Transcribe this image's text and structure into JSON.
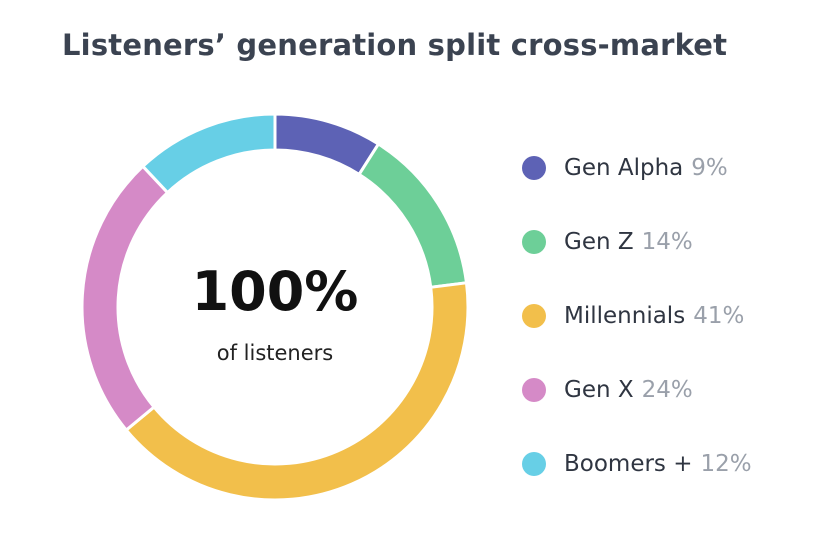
{
  "chart_data": {
    "type": "pie",
    "title": "Listeners’ generation split cross-market",
    "center_value": "100%",
    "center_caption": "of listeners",
    "categories": [
      "Gen Alpha",
      "Gen Z",
      "Millennials",
      "Gen X",
      "Boomers +"
    ],
    "values": [
      9,
      14,
      41,
      24,
      12
    ],
    "value_labels": [
      "9%",
      "14%",
      "41%",
      "24%",
      "12%"
    ],
    "colors": [
      "#5d62b5",
      "#6dcf98",
      "#f2bf4b",
      "#d58ac7",
      "#67cfe6"
    ],
    "legend_position": "right",
    "donut": true
  }
}
